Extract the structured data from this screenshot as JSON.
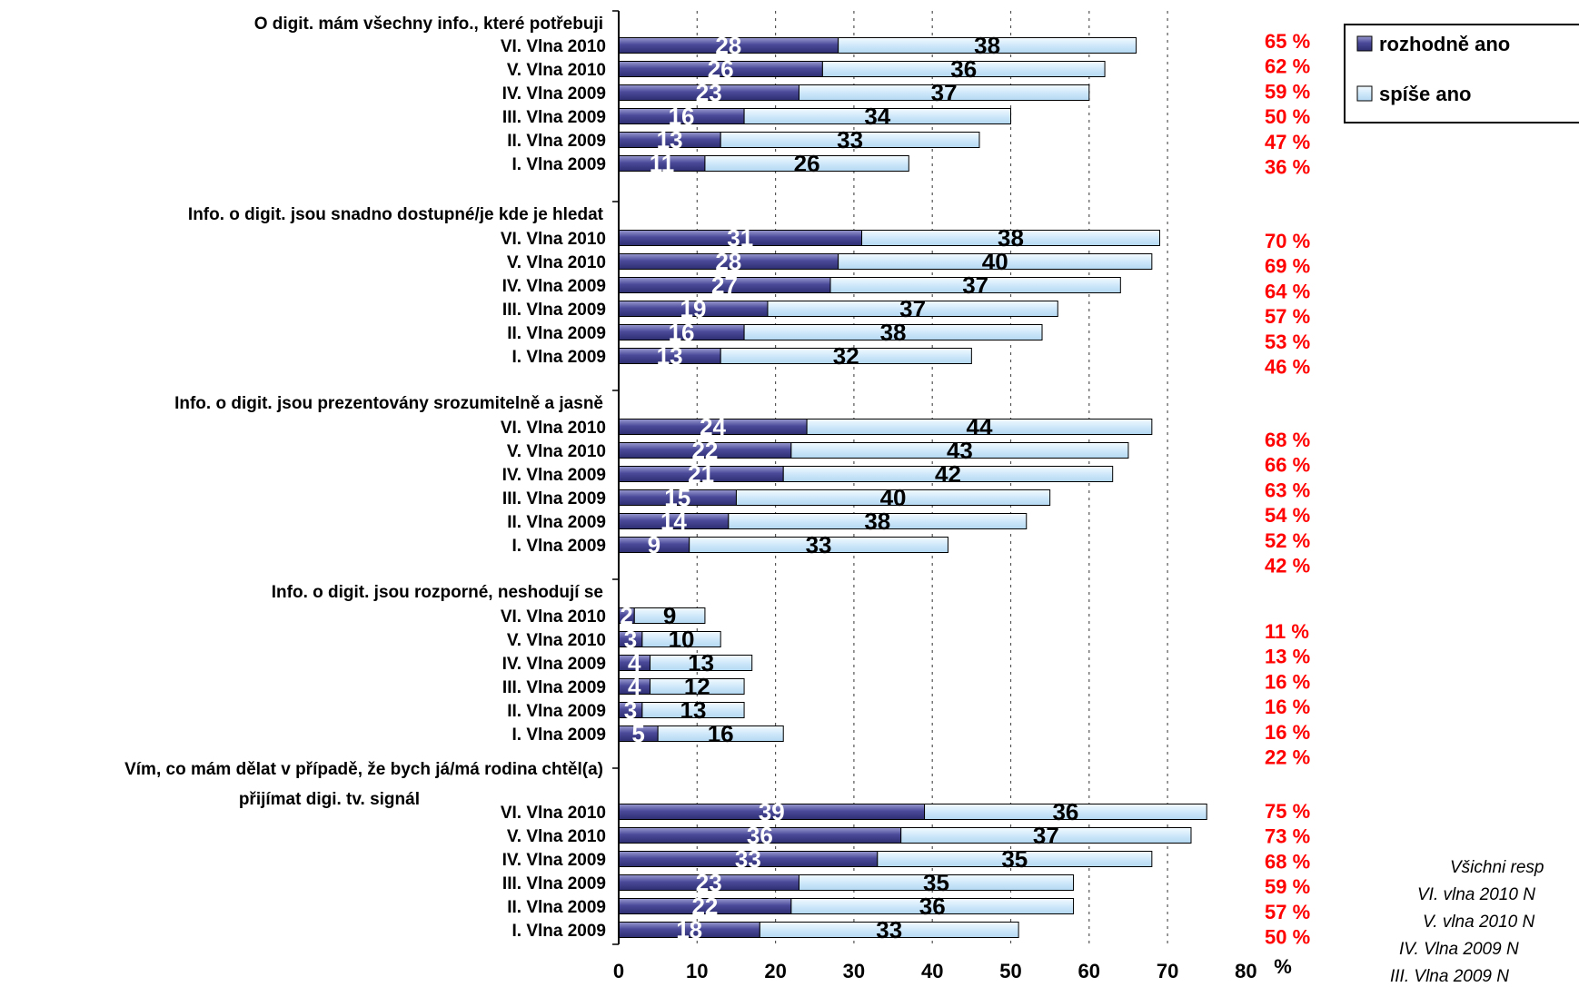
{
  "chart_data": {
    "type": "bar",
    "orientation": "horizontal",
    "stacked": true,
    "xlim": [
      0,
      80
    ],
    "xticks": [
      0,
      10,
      20,
      30,
      40,
      50,
      60,
      70,
      80
    ],
    "xunit": "%",
    "grid": "vertical dashed",
    "legend_position": "top-right",
    "series": [
      {
        "name": "rozhodně ano",
        "color": "#5a5aa6"
      },
      {
        "name": "spíše ano",
        "color": "#cce6f8"
      }
    ],
    "groups": [
      {
        "label": "O digit. mám všechny info., které potřebuji",
        "rows": [
          {
            "label": "VI. Vlna 2010",
            "rozhodne": 28,
            "spise": 38,
            "total": "65 %"
          },
          {
            "label": "V. Vlna 2010",
            "rozhodne": 26,
            "spise": 36,
            "total": "62 %"
          },
          {
            "label": "IV. Vlna 2009",
            "rozhodne": 23,
            "spise": 37,
            "total": "59 %"
          },
          {
            "label": "III. Vlna 2009",
            "rozhodne": 16,
            "spise": 34,
            "total": "50 %"
          },
          {
            "label": "II. Vlna 2009",
            "rozhodne": 13,
            "spise": 33,
            "total": "47 %"
          },
          {
            "label": "I. Vlna 2009",
            "rozhodne": 11,
            "spise": 26,
            "total": "36 %"
          }
        ]
      },
      {
        "label": "Info. o digit. jsou snadno dostupné/je kde je hledat",
        "rows": [
          {
            "label": "VI. Vlna 2010",
            "rozhodne": 31,
            "spise": 38,
            "total": "70 %"
          },
          {
            "label": "V. Vlna 2010",
            "rozhodne": 28,
            "spise": 40,
            "total": "69 %"
          },
          {
            "label": "IV. Vlna 2009",
            "rozhodne": 27,
            "spise": 37,
            "total": "64 %"
          },
          {
            "label": "III. Vlna 2009",
            "rozhodne": 19,
            "spise": 37,
            "total": "57 %"
          },
          {
            "label": "II. Vlna 2009",
            "rozhodne": 16,
            "spise": 38,
            "total": "53 %"
          },
          {
            "label": "I. Vlna 2009",
            "rozhodne": 13,
            "spise": 32,
            "total": "46 %"
          }
        ]
      },
      {
        "label": "Info. o digit. jsou prezentovány srozumitelně a jasně",
        "rows": [
          {
            "label": "VI. Vlna 2010",
            "rozhodne": 24,
            "spise": 44,
            "total": "68 %"
          },
          {
            "label": "V. Vlna 2010",
            "rozhodne": 22,
            "spise": 43,
            "total": "66 %"
          },
          {
            "label": "IV. Vlna 2009",
            "rozhodne": 21,
            "spise": 42,
            "total": "63 %"
          },
          {
            "label": "III. Vlna 2009",
            "rozhodne": 15,
            "spise": 40,
            "total": "54 %"
          },
          {
            "label": "II. Vlna 2009",
            "rozhodne": 14,
            "spise": 38,
            "total": "52 %"
          },
          {
            "label": "I. Vlna 2009",
            "rozhodne": 9,
            "spise": 33,
            "total": "42 %"
          }
        ]
      },
      {
        "label": "Info. o digit. jsou rozporné, neshodují se",
        "rows": [
          {
            "label": "VI. Vlna 2010",
            "rozhodne": 2,
            "spise": 9,
            "total": "11 %"
          },
          {
            "label": "V. Vlna 2010",
            "rozhodne": 3,
            "spise": 10,
            "total": "13 %"
          },
          {
            "label": "IV. Vlna 2009",
            "rozhodne": 4,
            "spise": 13,
            "total": "16 %"
          },
          {
            "label": "III. Vlna 2009",
            "rozhodne": 4,
            "spise": 12,
            "total": "16 %"
          },
          {
            "label": "II. Vlna 2009",
            "rozhodne": 3,
            "spise": 13,
            "total": "16 %"
          },
          {
            "label": "I. Vlna 2009",
            "rozhodne": 5,
            "spise": 16,
            "total": "22 %"
          }
        ]
      },
      {
        "label": "Vím, co mám dělat v případě, že bych já/má rodina chtěl(a)",
        "label2": "přijímat digi. tv. signál",
        "rows": [
          {
            "label": "VI. Vlna 2010",
            "rozhodne": 39,
            "spise": 36,
            "total": "75 %"
          },
          {
            "label": "V. Vlna 2010",
            "rozhodne": 36,
            "spise": 37,
            "total": "73 %"
          },
          {
            "label": "IV. Vlna 2009",
            "rozhodne": 33,
            "spise": 35,
            "total": "68 %"
          },
          {
            "label": "III. Vlna 2009",
            "rozhodne": 23,
            "spise": 35,
            "total": "59 %"
          },
          {
            "label": "II. Vlna 2009",
            "rozhodne": 22,
            "spise": 36,
            "total": "57 %"
          },
          {
            "label": "I. Vlna 2009",
            "rozhodne": 18,
            "spise": 33,
            "total": "50 %"
          }
        ]
      }
    ],
    "notes": [
      "Všichni resp",
      "VI. vlna 2010 N",
      "V. vlna 2010 N",
      "IV. Vlna 2009  N",
      "III. Vlna 2009  N"
    ]
  }
}
